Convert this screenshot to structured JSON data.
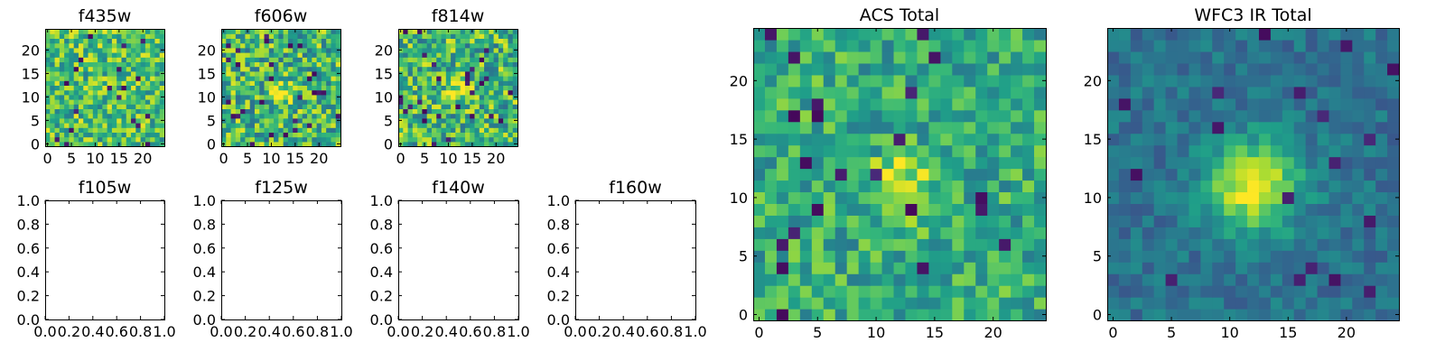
{
  "figure": {
    "colormap": "viridis"
  },
  "chart_data": [
    {
      "type": "heatmap",
      "title": "f435w",
      "grid": false,
      "xlim": [
        -0.5,
        24.5
      ],
      "ylim": [
        -0.5,
        24.5
      ],
      "xticks": [
        0,
        5,
        10,
        15,
        20
      ],
      "yticks": [
        0,
        5,
        10,
        15,
        20
      ],
      "shape": [
        25,
        25
      ],
      "note": "pixel noise map; source barely visible near (12,12)"
    },
    {
      "type": "heatmap",
      "title": "f606w",
      "grid": false,
      "xlim": [
        -0.5,
        24.5
      ],
      "ylim": [
        -0.5,
        24.5
      ],
      "xticks": [
        0,
        5,
        10,
        15,
        20
      ],
      "yticks": [
        0,
        5,
        10,
        15,
        20
      ],
      "shape": [
        25,
        25
      ],
      "source_center": [
        12,
        11
      ]
    },
    {
      "type": "heatmap",
      "title": "f814w",
      "grid": false,
      "xlim": [
        -0.5,
        24.5
      ],
      "ylim": [
        -0.5,
        24.5
      ],
      "xticks": [
        0,
        5,
        10,
        15,
        20
      ],
      "yticks": [
        0,
        5,
        10,
        15,
        20
      ],
      "shape": [
        25,
        25
      ],
      "source_center": [
        12,
        11
      ]
    },
    {
      "type": "empty",
      "title": "f105w",
      "xlim": [
        0,
        1
      ],
      "ylim": [
        0,
        1
      ],
      "xticks": [
        "0.0",
        "0.2",
        "0.4",
        "0.6",
        "0.8",
        "1.0"
      ],
      "yticks": [
        "0.0",
        "0.2",
        "0.4",
        "0.6",
        "0.8",
        "1.0"
      ]
    },
    {
      "type": "empty",
      "title": "f125w",
      "xlim": [
        0,
        1
      ],
      "ylim": [
        0,
        1
      ],
      "xticks": [
        "0.0",
        "0.2",
        "0.4",
        "0.6",
        "0.8",
        "1.0"
      ],
      "yticks": [
        "0.0",
        "0.2",
        "0.4",
        "0.6",
        "0.8",
        "1.0"
      ]
    },
    {
      "type": "empty",
      "title": "f140w",
      "xlim": [
        0,
        1
      ],
      "ylim": [
        0,
        1
      ],
      "xticks": [
        "0.0",
        "0.2",
        "0.4",
        "0.6",
        "0.8",
        "1.0"
      ],
      "yticks": [
        "0.0",
        "0.2",
        "0.4",
        "0.6",
        "0.8",
        "1.0"
      ]
    },
    {
      "type": "empty",
      "title": "f160w",
      "xlim": [
        0,
        1
      ],
      "ylim": [
        0,
        1
      ],
      "xticks": [
        "0.0",
        "0.2",
        "0.4",
        "0.6",
        "0.8",
        "1.0"
      ],
      "yticks": [
        "0.0",
        "0.2",
        "0.4",
        "0.6",
        "0.8",
        "1.0"
      ]
    },
    {
      "type": "heatmap",
      "title": "ACS Total",
      "grid": false,
      "xlim": [
        -0.5,
        24.5
      ],
      "ylim": [
        -0.5,
        24.5
      ],
      "xticks": [
        0,
        5,
        10,
        15,
        20
      ],
      "yticks": [
        0,
        5,
        10,
        15,
        20
      ],
      "shape": [
        25,
        25
      ],
      "source_center": [
        12,
        11
      ]
    },
    {
      "type": "heatmap",
      "title": "WFC3 IR Total",
      "grid": false,
      "xlim": [
        -0.5,
        24.5
      ],
      "ylim": [
        -0.5,
        24.5
      ],
      "xticks": [
        0,
        5,
        10,
        15,
        20
      ],
      "yticks": [
        0,
        5,
        10,
        15,
        20
      ],
      "shape": [
        25,
        25
      ],
      "source_center": [
        12,
        11
      ]
    }
  ]
}
